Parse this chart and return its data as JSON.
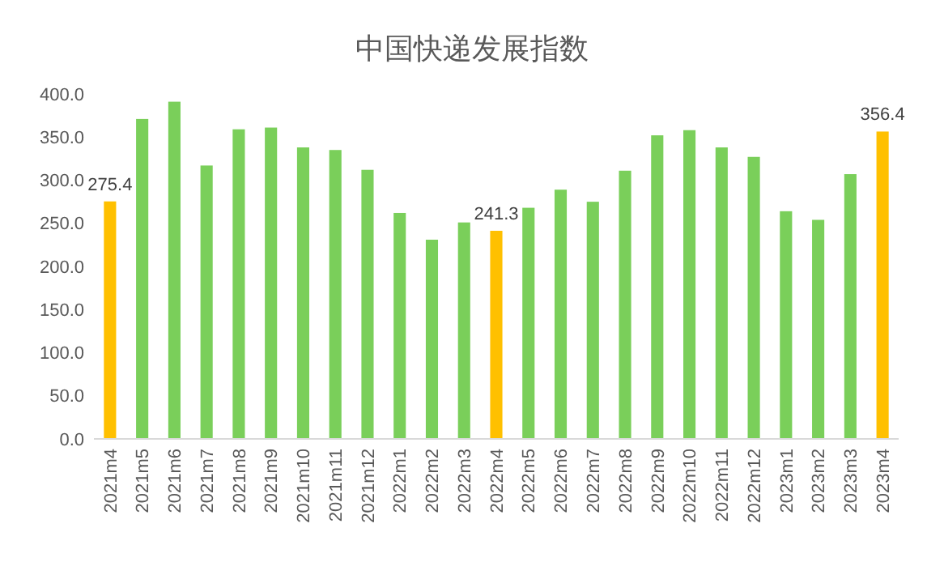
{
  "chart_data": {
    "type": "bar",
    "title": "中国快递发展指数",
    "categories": [
      "2021m4",
      "2021m5",
      "2021m6",
      "2021m7",
      "2021m8",
      "2021m9",
      "2021m10",
      "2021m11",
      "2021m12",
      "2022m1",
      "2022m2",
      "2022m3",
      "2022m4",
      "2022m5",
      "2022m6",
      "2022m7",
      "2022m8",
      "2022m9",
      "2022m10",
      "2022m11",
      "2022m12",
      "2023m1",
      "2023m2",
      "2023m3",
      "2023m4"
    ],
    "values": [
      275.4,
      371,
      391,
      317,
      359,
      361,
      338,
      335,
      312,
      262,
      231,
      251,
      241.3,
      268,
      289,
      275,
      311,
      352,
      358,
      338,
      327,
      264,
      254,
      307,
      356.4
    ],
    "colors": [
      "#ffc000",
      "#7acf5a",
      "#7acf5a",
      "#7acf5a",
      "#7acf5a",
      "#7acf5a",
      "#7acf5a",
      "#7acf5a",
      "#7acf5a",
      "#7acf5a",
      "#7acf5a",
      "#7acf5a",
      "#ffc000",
      "#7acf5a",
      "#7acf5a",
      "#7acf5a",
      "#7acf5a",
      "#7acf5a",
      "#7acf5a",
      "#7acf5a",
      "#7acf5a",
      "#7acf5a",
      "#7acf5a",
      "#7acf5a",
      "#ffc000"
    ],
    "value_labels": [
      "275.4",
      null,
      null,
      null,
      null,
      null,
      null,
      null,
      null,
      null,
      null,
      null,
      "241.3",
      null,
      null,
      null,
      null,
      null,
      null,
      null,
      null,
      null,
      null,
      null,
      "356.4"
    ],
    "ylim": [
      0,
      400
    ],
    "yticks": [
      {
        "value": 0,
        "label": "0.0"
      },
      {
        "value": 50,
        "label": "50.0"
      },
      {
        "value": 100,
        "label": "100.0"
      },
      {
        "value": 150,
        "label": "150.0"
      },
      {
        "value": 200,
        "label": "200.0"
      },
      {
        "value": 250,
        "label": "250.0"
      },
      {
        "value": 300,
        "label": "300.0"
      },
      {
        "value": 350,
        "label": "350.0"
      },
      {
        "value": 400,
        "label": "400.0"
      }
    ],
    "grid": false
  }
}
